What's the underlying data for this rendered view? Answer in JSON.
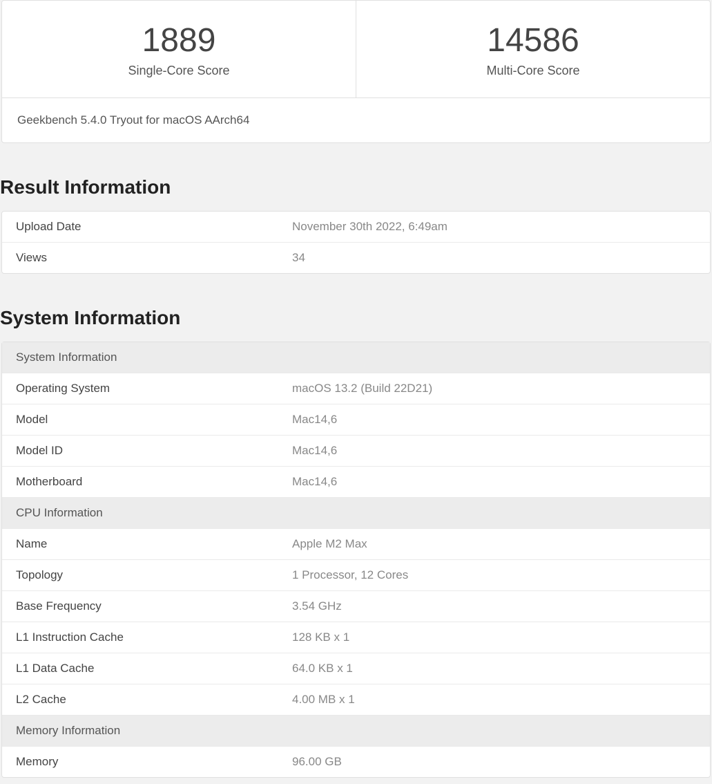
{
  "scores": {
    "single_core_value": "1889",
    "single_core_label": "Single-Core Score",
    "multi_core_value": "14586",
    "multi_core_label": "Multi-Core Score"
  },
  "version_text": "Geekbench 5.4.0 Tryout for macOS AArch64",
  "result_info": {
    "heading": "Result Information",
    "rows": [
      {
        "label": "Upload Date",
        "value": "November 30th 2022, 6:49am"
      },
      {
        "label": "Views",
        "value": "34"
      }
    ]
  },
  "system_info": {
    "heading": "System Information",
    "sections": [
      {
        "header": "System Information",
        "rows": [
          {
            "label": "Operating System",
            "value": "macOS 13.2 (Build 22D21)"
          },
          {
            "label": "Model",
            "value": "Mac14,6"
          },
          {
            "label": "Model ID",
            "value": "Mac14,6"
          },
          {
            "label": "Motherboard",
            "value": "Mac14,6"
          }
        ]
      },
      {
        "header": "CPU Information",
        "rows": [
          {
            "label": "Name",
            "value": "Apple M2 Max"
          },
          {
            "label": "Topology",
            "value": "1 Processor, 12 Cores"
          },
          {
            "label": "Base Frequency",
            "value": "3.54 GHz"
          },
          {
            "label": "L1 Instruction Cache",
            "value": "128 KB x 1"
          },
          {
            "label": "L1 Data Cache",
            "value": "64.0 KB x 1"
          },
          {
            "label": "L2 Cache",
            "value": "4.00 MB x 1"
          }
        ]
      },
      {
        "header": "Memory Information",
        "rows": [
          {
            "label": "Memory",
            "value": "96.00 GB"
          }
        ]
      }
    ]
  },
  "style": {
    "page_background": "#f2f2f2",
    "card_background": "#ffffff",
    "border_color": "#e0e0e0",
    "row_border_color": "#eaeaea",
    "header_row_background": "#ececec",
    "text_primary": "#333333",
    "text_secondary": "#888888",
    "score_fontsize": 48,
    "heading_fontsize": 28,
    "body_fontsize": 17
  }
}
